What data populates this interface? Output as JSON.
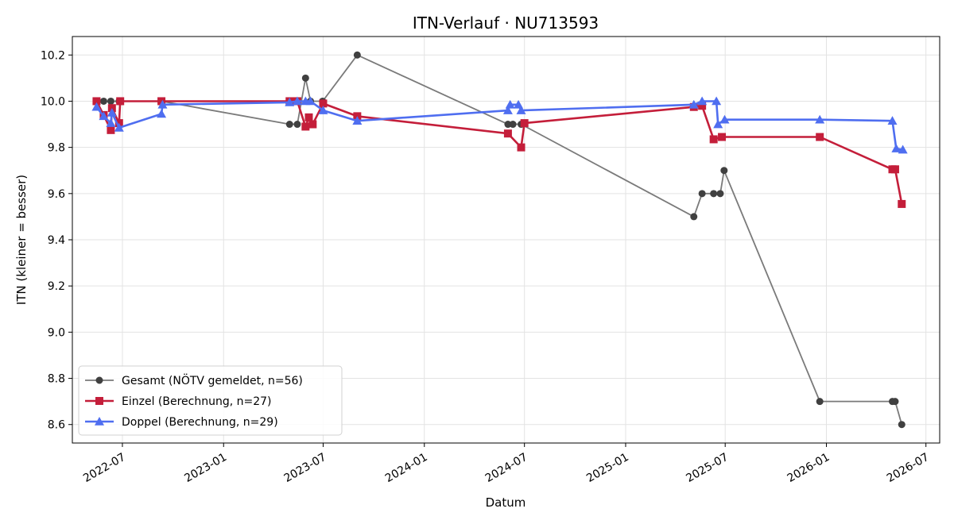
{
  "chart_data": {
    "type": "line",
    "title": "ITN-Verlauf · NU713593",
    "xlabel": "Datum",
    "ylabel": "ITN  (kleiner = besser)",
    "xlim": [
      "2022-04-01",
      "2026-07-26"
    ],
    "ylim": [
      8.52,
      10.28
    ],
    "x_ticks": [
      "2022-07-01",
      "2023-01-01",
      "2023-07-01",
      "2024-01-01",
      "2024-07-01",
      "2025-01-01",
      "2025-07-01",
      "2026-01-01",
      "2026-07-01"
    ],
    "x_tick_labels": [
      "2022-07",
      "2023-01",
      "2023-07",
      "2024-01",
      "2024-07",
      "2025-01",
      "2025-07",
      "2026-01",
      "2026-07"
    ],
    "y_ticks": [
      8.6,
      8.8,
      9.0,
      9.2,
      9.4,
      9.6,
      9.8,
      10.0,
      10.2
    ],
    "y_tick_labels": [
      "8.6",
      "8.8",
      "9.0",
      "9.2",
      "9.4",
      "9.6",
      "9.8",
      "10.0",
      "10.2"
    ],
    "grid": true,
    "legend_position": "lower-left",
    "series": [
      {
        "name": "Gesamt (NÖTV gemeldet, n=56)",
        "color": "#7a7a7a",
        "marker_color": "#404040",
        "marker": "circle",
        "points": [
          {
            "x": "2022-05-15",
            "y": 10.0
          },
          {
            "x": "2022-05-28",
            "y": 10.0
          },
          {
            "x": "2022-06-10",
            "y": 10.0
          },
          {
            "x": "2022-06-25",
            "y": 10.0
          },
          {
            "x": "2022-09-10",
            "y": 10.0
          },
          {
            "x": "2023-05-01",
            "y": 9.9
          },
          {
            "x": "2023-05-15",
            "y": 9.9
          },
          {
            "x": "2023-05-30",
            "y": 10.1
          },
          {
            "x": "2023-06-08",
            "y": 10.0
          },
          {
            "x": "2023-06-30",
            "y": 10.0
          },
          {
            "x": "2023-09-01",
            "y": 10.2
          },
          {
            "x": "2024-06-01",
            "y": 9.9
          },
          {
            "x": "2024-06-10",
            "y": 9.9
          },
          {
            "x": "2024-06-25",
            "y": 9.9
          },
          {
            "x": "2025-05-05",
            "y": 9.5
          },
          {
            "x": "2025-05-20",
            "y": 9.6
          },
          {
            "x": "2025-06-10",
            "y": 9.6
          },
          {
            "x": "2025-06-22",
            "y": 9.6
          },
          {
            "x": "2025-06-29",
            "y": 9.7
          },
          {
            "x": "2025-12-20",
            "y": 8.7
          },
          {
            "x": "2026-05-01",
            "y": 8.7
          },
          {
            "x": "2026-05-06",
            "y": 8.7
          },
          {
            "x": "2026-05-18",
            "y": 8.6
          }
        ]
      },
      {
        "name": "Einzel (Berechnung, n=27)",
        "color": "#c41e3a",
        "marker_color": "#c41e3a",
        "marker": "square",
        "points": [
          {
            "x": "2022-05-15",
            "y": 10.0
          },
          {
            "x": "2022-05-28",
            "y": 9.94
          },
          {
            "x": "2022-06-10",
            "y": 9.875
          },
          {
            "x": "2022-06-12",
            "y": 9.97
          },
          {
            "x": "2022-06-25",
            "y": 9.905
          },
          {
            "x": "2022-06-27",
            "y": 10.0
          },
          {
            "x": "2022-09-10",
            "y": 10.0
          },
          {
            "x": "2023-05-01",
            "y": 10.0
          },
          {
            "x": "2023-05-15",
            "y": 10.0
          },
          {
            "x": "2023-05-30",
            "y": 9.89
          },
          {
            "x": "2023-06-05",
            "y": 9.93
          },
          {
            "x": "2023-06-12",
            "y": 9.9
          },
          {
            "x": "2023-07-01",
            "y": 9.99
          },
          {
            "x": "2023-09-01",
            "y": 9.935
          },
          {
            "x": "2024-06-01",
            "y": 9.86
          },
          {
            "x": "2024-06-25",
            "y": 9.8
          },
          {
            "x": "2024-07-01",
            "y": 9.905
          },
          {
            "x": "2025-05-05",
            "y": 9.975
          },
          {
            "x": "2025-05-20",
            "y": 9.98
          },
          {
            "x": "2025-06-10",
            "y": 9.835
          },
          {
            "x": "2025-06-25",
            "y": 9.845
          },
          {
            "x": "2025-12-20",
            "y": 9.845
          },
          {
            "x": "2026-05-01",
            "y": 9.705
          },
          {
            "x": "2026-05-06",
            "y": 9.705
          },
          {
            "x": "2026-05-18",
            "y": 9.555
          }
        ]
      },
      {
        "name": "Doppel (Berechnung, n=29)",
        "color": "#4f6ef0",
        "marker_color": "#4f6ef0",
        "marker": "triangle",
        "points": [
          {
            "x": "2022-05-15",
            "y": 9.975
          },
          {
            "x": "2022-05-28",
            "y": 9.935
          },
          {
            "x": "2022-06-10",
            "y": 9.905
          },
          {
            "x": "2022-06-12",
            "y": 9.95
          },
          {
            "x": "2022-06-25",
            "y": 9.885
          },
          {
            "x": "2022-09-10",
            "y": 9.945
          },
          {
            "x": "2022-09-12",
            "y": 9.985
          },
          {
            "x": "2023-05-01",
            "y": 9.995
          },
          {
            "x": "2023-05-15",
            "y": 10.0
          },
          {
            "x": "2023-05-30",
            "y": 10.0
          },
          {
            "x": "2023-06-08",
            "y": 10.0
          },
          {
            "x": "2023-07-01",
            "y": 9.96
          },
          {
            "x": "2023-09-01",
            "y": 9.915
          },
          {
            "x": "2024-06-01",
            "y": 9.96
          },
          {
            "x": "2024-06-05",
            "y": 9.985
          },
          {
            "x": "2024-06-20",
            "y": 9.985
          },
          {
            "x": "2024-06-25",
            "y": 9.96
          },
          {
            "x": "2025-05-05",
            "y": 9.985
          },
          {
            "x": "2025-05-20",
            "y": 10.0
          },
          {
            "x": "2025-06-15",
            "y": 10.0
          },
          {
            "x": "2025-06-18",
            "y": 9.9
          },
          {
            "x": "2025-06-30",
            "y": 9.92
          },
          {
            "x": "2025-12-20",
            "y": 9.92
          },
          {
            "x": "2026-05-01",
            "y": 9.915
          },
          {
            "x": "2026-05-08",
            "y": 9.795
          },
          {
            "x": "2026-05-20",
            "y": 9.79
          }
        ]
      }
    ]
  }
}
